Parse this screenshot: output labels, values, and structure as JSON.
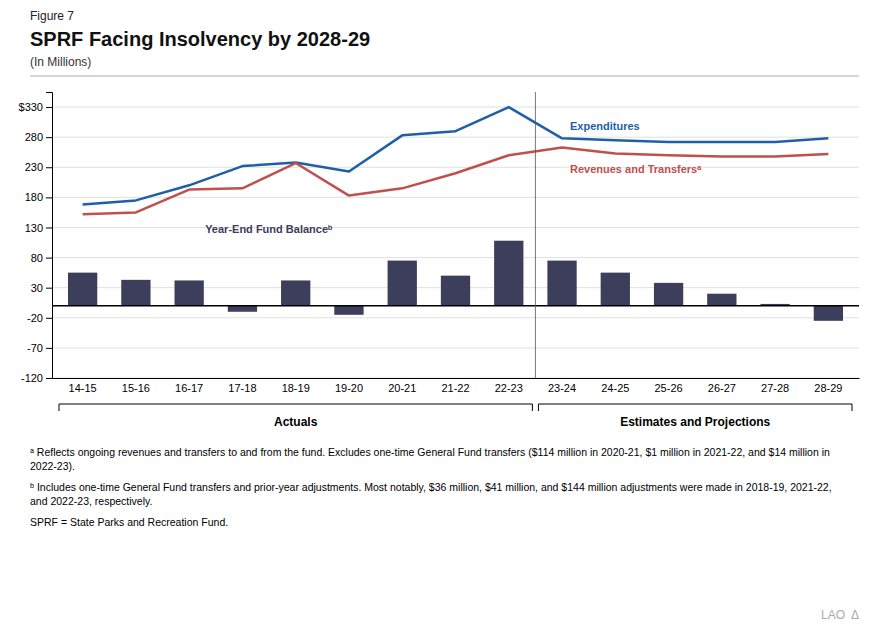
{
  "chart_data": {
    "type": "combo",
    "figure_label": "Figure 7",
    "title": "SPRF Facing Insolvency by 2028-29",
    "subtitle": "(In Millions)",
    "categories": [
      "14-15",
      "15-16",
      "16-17",
      "17-18",
      "18-19",
      "19-20",
      "20-21",
      "21-22",
      "22-23",
      "23-24",
      "24-25",
      "25-26",
      "26-27",
      "27-28",
      "28-29"
    ],
    "series": [
      {
        "name": "Year-End Fund Balanceᵇ",
        "type": "bar",
        "color": "#3d3d5c",
        "values": [
          55,
          43,
          42,
          -10,
          42,
          -15,
          75,
          50,
          108,
          75,
          55,
          38,
          20,
          3,
          -25
        ]
      },
      {
        "name": "Expenditures",
        "type": "line",
        "color": "#1f5fa6",
        "values": [
          168,
          175,
          200,
          232,
          238,
          223,
          283,
          290,
          330,
          278,
          275,
          272,
          272,
          272,
          278
        ]
      },
      {
        "name": "Revenues and Transfersᵃ",
        "type": "line",
        "color": "#c0504d",
        "values": [
          152,
          155,
          193,
          195,
          237,
          183,
          195,
          220,
          250,
          263,
          253,
          250,
          248,
          248,
          252
        ]
      }
    ],
    "ylim": [
      -120,
      355
    ],
    "yticks": [
      -120,
      -70,
      -20,
      30,
      80,
      130,
      180,
      230,
      280,
      {
        "value": 330,
        "label": "$330"
      }
    ],
    "grid": true,
    "annotations": [
      {
        "text": "Actuals",
        "from": "14-15",
        "to": "22-23"
      },
      {
        "text": "Estimates and Projections",
        "from": "23-24",
        "to": "28-29"
      }
    ],
    "footnotes": [
      "ᵃ Reflects ongoing revenues and transfers to and from the fund. Excludes one-time General Fund transfers ($114 million in 2020-21, $1 million in 2021-22, and $14 million in 2022-23).",
      "ᵇ Includes one-time General Fund transfers and prior-year adjustments. Most notably, $36 million, $41 million, and $144 million adjustments were made in 2018-19, 2021-22,\nand 2022-23, respectively.",
      "SPRF = State Parks and Recreation Fund."
    ],
    "credit": "LAO Δ"
  }
}
